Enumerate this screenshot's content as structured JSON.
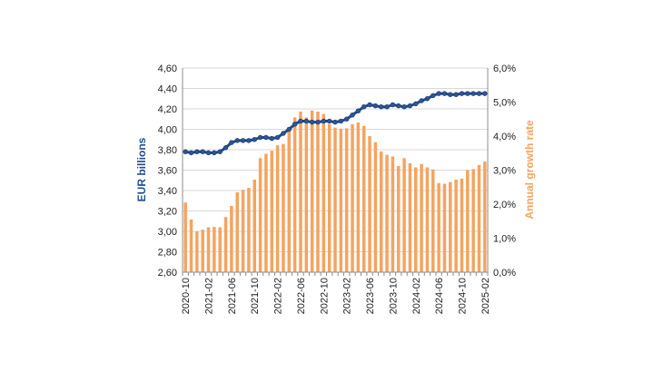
{
  "chart_data": {
    "type": "bar+line",
    "title": "",
    "colors": {
      "bars": "#F4A460",
      "line": "#1F4E8C",
      "line_marker": "#2F5597",
      "grid": "#D9D9D9"
    },
    "left_axis": {
      "label": "EUR billions",
      "ylim": [
        2.6,
        4.6
      ],
      "ticks": [
        "2,60",
        "2,80",
        "3,00",
        "3,20",
        "3,40",
        "3,60",
        "3,80",
        "4,00",
        "4,20",
        "4,40",
        "4,60"
      ],
      "tick_values": [
        2.6,
        2.8,
        3.0,
        3.2,
        3.4,
        3.6,
        3.8,
        4.0,
        4.2,
        4.4,
        4.6
      ]
    },
    "right_axis": {
      "label": "Annual growth rate",
      "ylim": [
        0.0,
        6.0
      ],
      "ticks": [
        "0,0%",
        "1,0%",
        "2,0%",
        "3,0%",
        "4,0%",
        "5,0%",
        "6,0%"
      ],
      "tick_values": [
        0,
        1,
        2,
        3,
        4,
        5,
        6
      ]
    },
    "x_tick_labels": [
      "2020-10",
      "2021-02",
      "2021-06",
      "2021-10",
      "2022-02",
      "2022-06",
      "2022-10",
      "2023-02",
      "2023-06",
      "2023-10",
      "2024-02",
      "2024-06",
      "2024-10",
      "2025-02"
    ],
    "x": [
      "2020-10",
      "2020-11",
      "2020-12",
      "2021-01",
      "2021-02",
      "2021-03",
      "2021-04",
      "2021-05",
      "2021-06",
      "2021-07",
      "2021-08",
      "2021-09",
      "2021-10",
      "2021-11",
      "2021-12",
      "2022-01",
      "2022-02",
      "2022-03",
      "2022-04",
      "2022-05",
      "2022-06",
      "2022-07",
      "2022-08",
      "2022-09",
      "2022-10",
      "2022-11",
      "2022-12",
      "2023-01",
      "2023-02",
      "2023-03",
      "2023-04",
      "2023-05",
      "2023-06",
      "2023-07",
      "2023-08",
      "2023-09",
      "2023-10",
      "2023-11",
      "2023-12",
      "2024-01",
      "2024-02",
      "2024-03",
      "2024-04",
      "2024-05",
      "2024-06",
      "2024-07",
      "2024-08",
      "2024-09",
      "2024-10",
      "2024-11",
      "2024-12",
      "2025-01",
      "2025-02"
    ],
    "series": [
      {
        "name": "EUR billions",
        "type": "bar",
        "axis": "right",
        "values": [
          2.05,
          1.55,
          1.2,
          1.25,
          1.32,
          1.33,
          1.32,
          1.62,
          1.95,
          2.35,
          2.42,
          2.48,
          2.72,
          3.35,
          3.48,
          3.57,
          3.73,
          3.77,
          4.2,
          4.55,
          4.72,
          4.55,
          4.75,
          4.72,
          4.65,
          4.35,
          4.25,
          4.22,
          4.23,
          4.35,
          4.4,
          4.3,
          4.0,
          3.82,
          3.55,
          3.45,
          3.4,
          3.12,
          3.35,
          3.2,
          3.08,
          3.18,
          3.08,
          3.02,
          2.62,
          2.6,
          2.65,
          2.72,
          2.75,
          3.0,
          3.03,
          3.15,
          3.25
        ]
      },
      {
        "name": "Annual growth rate",
        "type": "line",
        "axis": "left",
        "values": [
          3.78,
          3.77,
          3.78,
          3.78,
          3.77,
          3.77,
          3.78,
          3.82,
          3.87,
          3.89,
          3.89,
          3.89,
          3.9,
          3.92,
          3.92,
          3.91,
          3.92,
          3.96,
          4.0,
          4.05,
          4.08,
          4.08,
          4.07,
          4.07,
          4.08,
          4.08,
          4.07,
          4.08,
          4.1,
          4.14,
          4.18,
          4.22,
          4.24,
          4.23,
          4.22,
          4.22,
          4.24,
          4.23,
          4.22,
          4.23,
          4.25,
          4.28,
          4.3,
          4.33,
          4.35,
          4.35,
          4.34,
          4.34,
          4.35,
          4.35,
          4.35,
          4.35,
          4.35
        ]
      }
    ]
  }
}
